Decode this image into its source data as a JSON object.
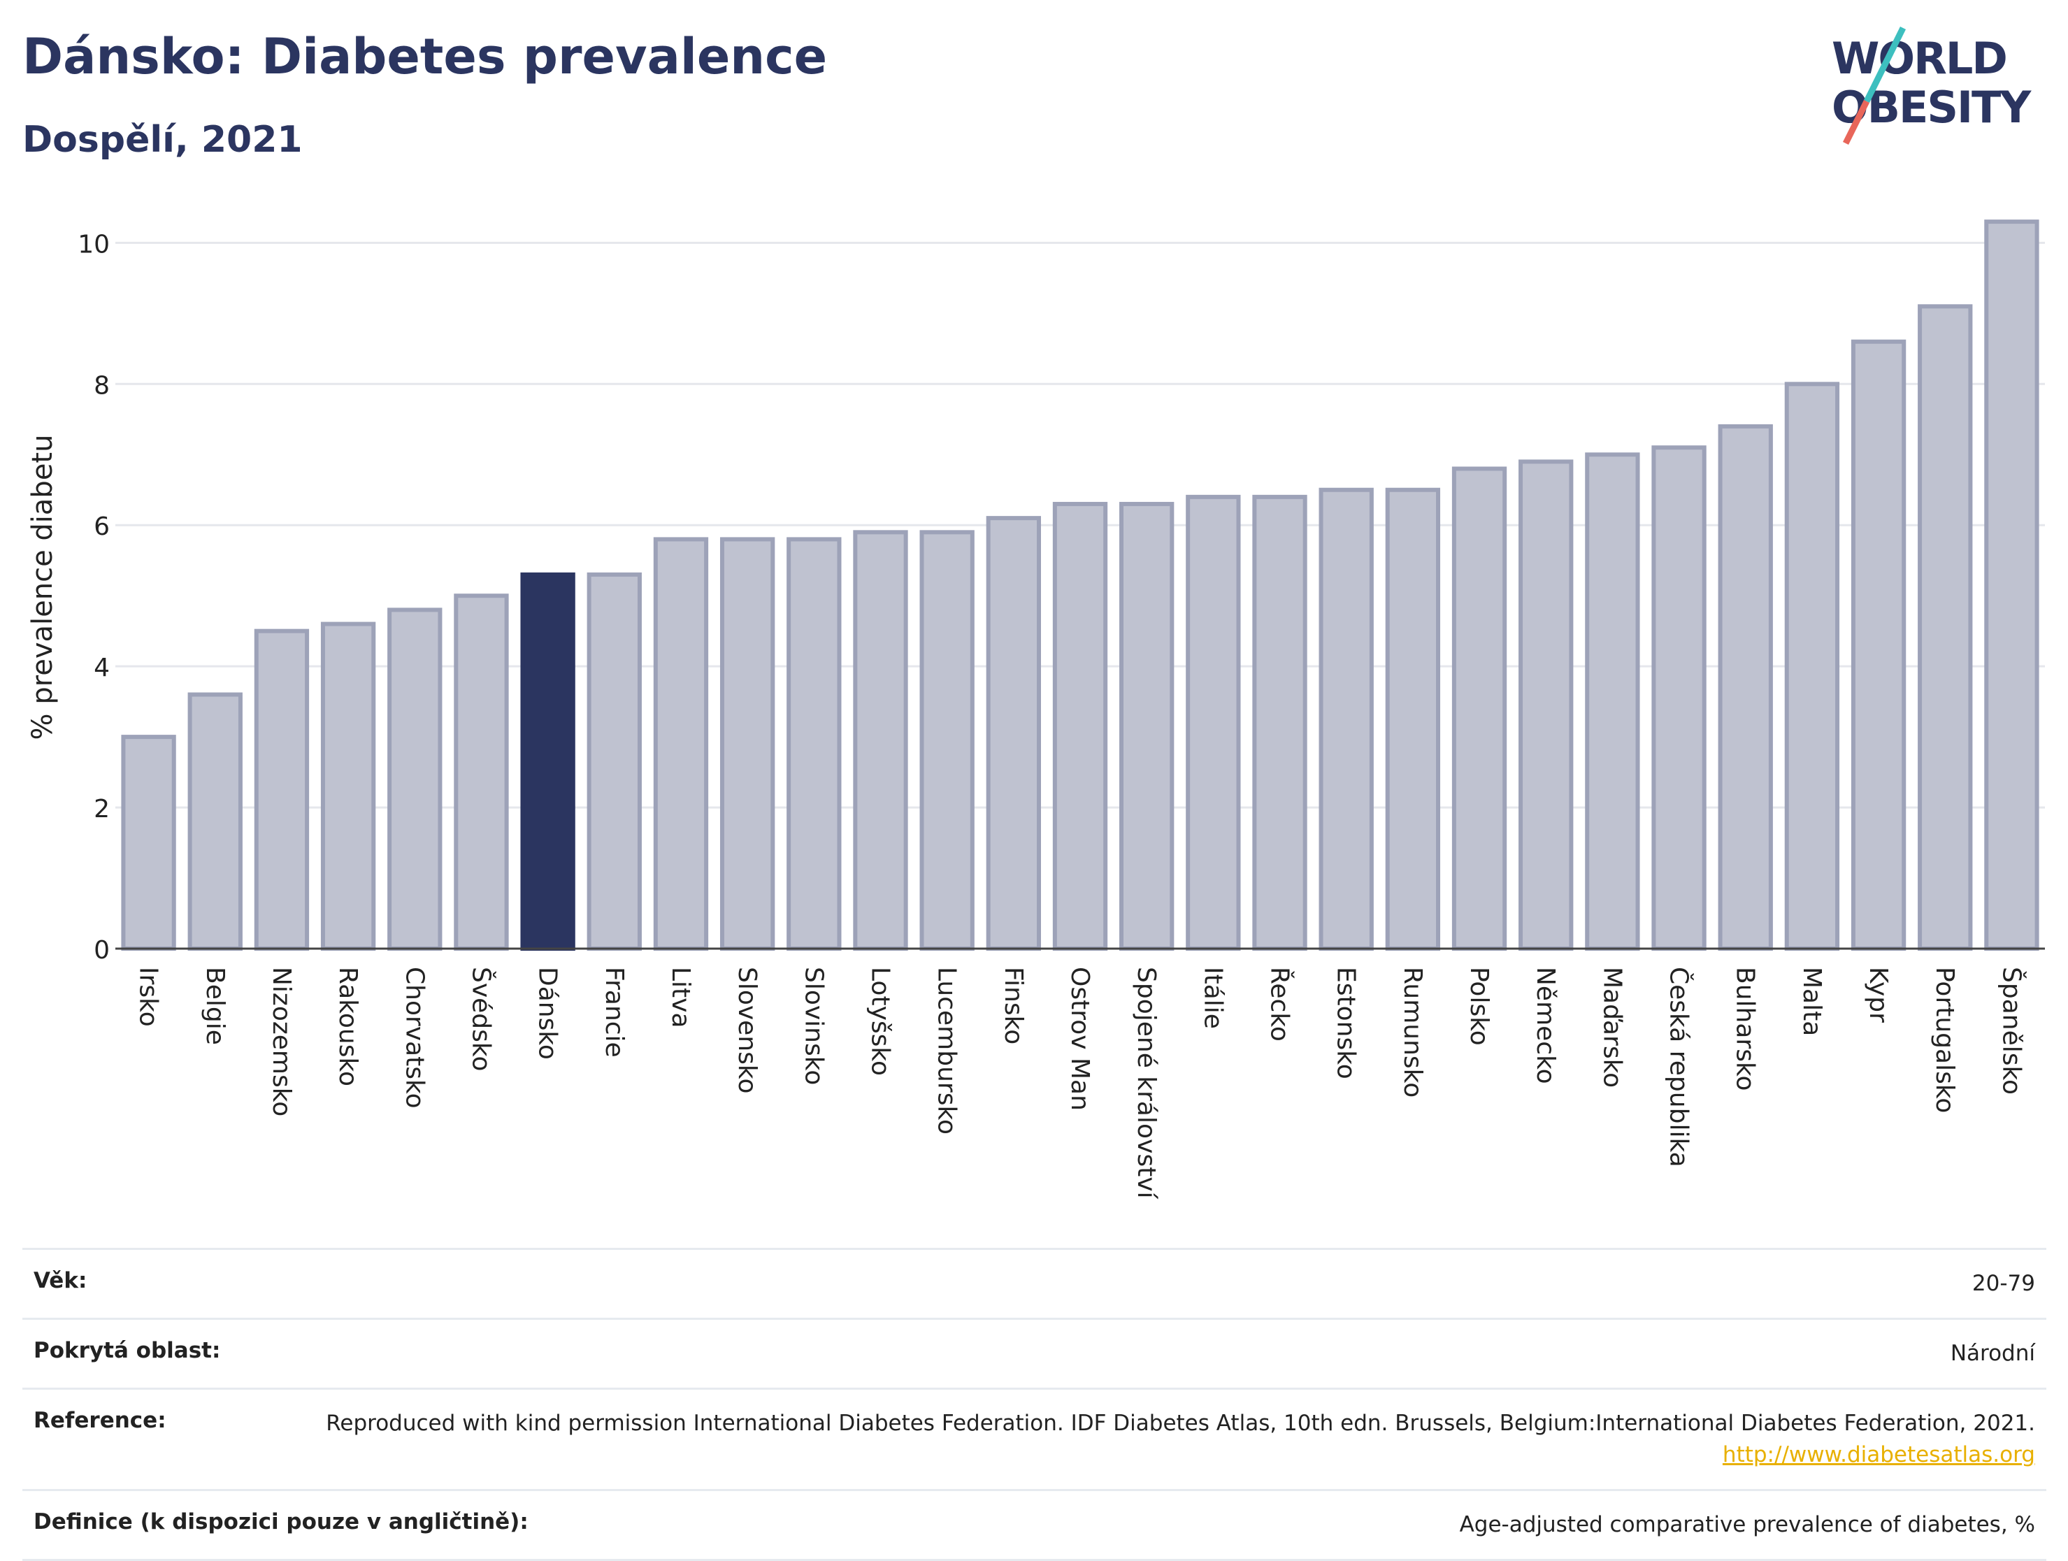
{
  "header": {
    "title": "Dánsko: Diabetes prevalence",
    "subtitle": "Dospělí, 2021",
    "logo_line1": "WORLD",
    "logo_line2": "OBESITY"
  },
  "colors": {
    "bar": "#bfc2d0",
    "bar_stroke": "#9da2b8",
    "highlight": "#2b3560",
    "title": "#2b3560",
    "grid": "#e5e7ec",
    "link": "#e8b000"
  },
  "chart_data": {
    "type": "bar",
    "ylabel": "% prevalence diabetu",
    "xlabel": "",
    "ylim": [
      0,
      10.4
    ],
    "yticks": [
      0,
      2,
      4,
      6,
      8,
      10
    ],
    "grid": true,
    "highlight": "Dánsko",
    "categories": [
      "Irsko",
      "Belgie",
      "Nizozemsko",
      "Rakousko",
      "Chorvatsko",
      "Švédsko",
      "Dánsko",
      "Francie",
      "Litva",
      "Slovensko",
      "Slovinsko",
      "Lotyšsko",
      "Lucembursko",
      "Finsko",
      "Ostrov Man",
      "Spojené království",
      "Itálie",
      "Řecko",
      "Estonsko",
      "Rumunsko",
      "Polsko",
      "Německo",
      "Maďarsko",
      "Česká republika",
      "Bulharsko",
      "Malta",
      "Kypr",
      "Portugalsko",
      "Španělsko"
    ],
    "values": [
      3.0,
      3.6,
      4.5,
      4.6,
      4.8,
      5.0,
      5.3,
      5.3,
      5.8,
      5.8,
      5.8,
      5.9,
      5.9,
      6.1,
      6.3,
      6.3,
      6.4,
      6.4,
      6.5,
      6.5,
      6.8,
      6.9,
      7.0,
      7.1,
      7.4,
      8.0,
      8.6,
      9.1,
      10.3
    ]
  },
  "info": {
    "age_label": "Věk:",
    "age_value": "20-79",
    "area_label": "Pokrytá oblast:",
    "area_value": "Národní",
    "ref_label": "Reference:",
    "ref_text": "Reproduced with kind permission International Diabetes Federation.  IDF Diabetes Atlas, 10th edn. Brussels, Belgium:International Diabetes Federation, 2021.",
    "ref_link": "http://www.diabetesatlas.org",
    "def_label": "Definice (k dispozici pouze v angličtině):",
    "def_value": "Age-adjusted comparative prevalence of diabetes, %"
  }
}
